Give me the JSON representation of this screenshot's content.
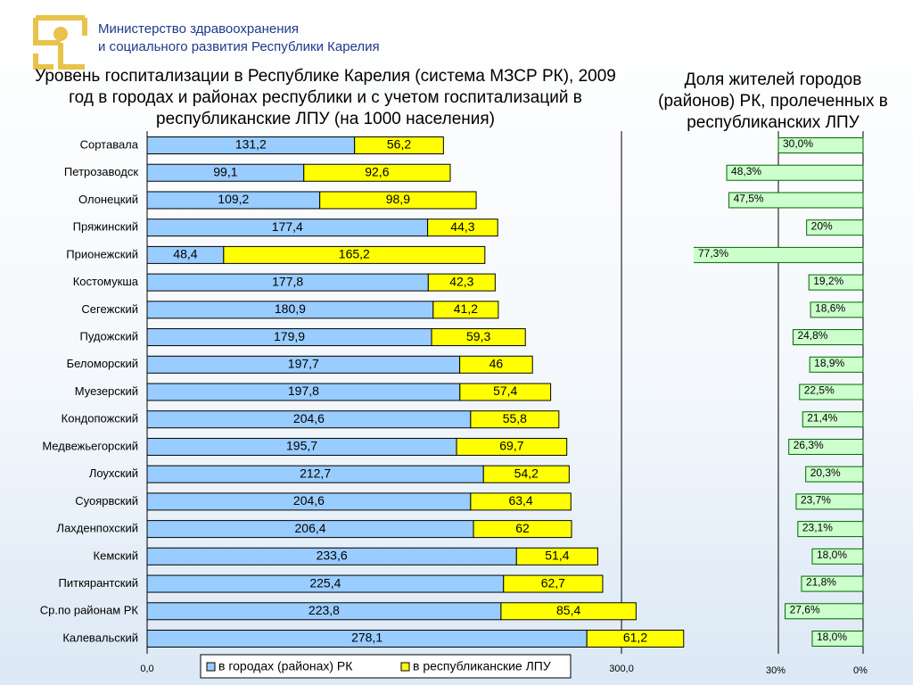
{
  "header": {
    "line1": "Министерство здравоохранения",
    "line2": "и социального развития Республики Карелия"
  },
  "chart_data": [
    {
      "type": "bar",
      "orientation": "horizontal",
      "stacked": true,
      "title": "Уровень госпитализации в Республике Карелия (система МЗСР РК), 2009 год в городах и районах республики и с учетом госпитализаций в республиканские ЛПУ (на 1000 населения)",
      "categories": [
        "Сортавала",
        "Петрозаводск",
        "Олонецкий",
        "Пряжинский",
        "Прионежский",
        "Костомукша",
        "Сегежский",
        "Пудожский",
        "Беломорский",
        "Муезерский",
        "Кондопожский",
        "Медвежьегорский",
        "Лоухский",
        "Суоярвский",
        "Лахденпохский",
        "Кемский",
        "Питкярантский",
        "Ср.по районам РК",
        "Калевальский"
      ],
      "series": [
        {
          "name": "в городах (районах) РК",
          "color": "#99ccff",
          "values": [
            131.2,
            99.1,
            109.2,
            177.4,
            48.4,
            177.8,
            180.9,
            179.9,
            197.7,
            197.8,
            204.6,
            195.7,
            212.7,
            204.6,
            206.4,
            233.6,
            225.4,
            223.8,
            278.1
          ],
          "value_labels": [
            "131,2",
            "99,1",
            "109,2",
            "177,4",
            "48,4",
            "177,8",
            "180,9",
            "179,9",
            "197,7",
            "197,8",
            "204,6",
            "195,7",
            "212,7",
            "204,6",
            "206,4",
            "233,6",
            "225,4",
            "223,8",
            "278,1"
          ]
        },
        {
          "name": "в республиканские ЛПУ",
          "color": "#ffff00",
          "values": [
            56.2,
            92.6,
            98.9,
            44.3,
            165.2,
            42.3,
            41.2,
            59.3,
            46,
            57.4,
            55.8,
            69.7,
            54.2,
            63.4,
            62,
            51.4,
            62.7,
            85.4,
            61.2
          ],
          "value_labels": [
            "56,2",
            "92,6",
            "98,9",
            "44,3",
            "165,2",
            "42,3",
            "41,2",
            "59,3",
            "46",
            "57,4",
            "55,8",
            "69,7",
            "54,2",
            "63,4",
            "62",
            "51,4",
            "62,7",
            "85,4",
            "61,2"
          ]
        }
      ],
      "xlim": [
        0,
        340
      ],
      "xticks": [
        {
          "value": 0,
          "label": "0,0"
        },
        {
          "value": 300,
          "label": "300,0"
        }
      ],
      "legend": "bottom"
    },
    {
      "type": "bar",
      "orientation": "horizontal",
      "reversed": true,
      "title": "Доля жителей городов (районов)  РК, пролеченных в республиканских ЛПУ",
      "color": "#ccffcc",
      "values": [
        30.0,
        48.3,
        47.5,
        20,
        77.3,
        19.2,
        18.6,
        24.8,
        18.9,
        22.5,
        21.4,
        26.3,
        20.3,
        23.7,
        23.1,
        18.0,
        21.8,
        27.6,
        18.0
      ],
      "value_labels": [
        "30,0%",
        "48,3%",
        "47,5%",
        "20%",
        "77,3%",
        "19,2%",
        "18,6%",
        "24,8%",
        "18,9%",
        "22,5%",
        "21,4%",
        "26,3%",
        "20,3%",
        "23,7%",
        "23,1%",
        "18,0%",
        "21,8%",
        "27,6%",
        "18,0%"
      ],
      "xlim": [
        0,
        60
      ],
      "xticks": [
        {
          "value": 30,
          "label": "30%"
        },
        {
          "value": 0,
          "label": "0%"
        }
      ]
    }
  ]
}
